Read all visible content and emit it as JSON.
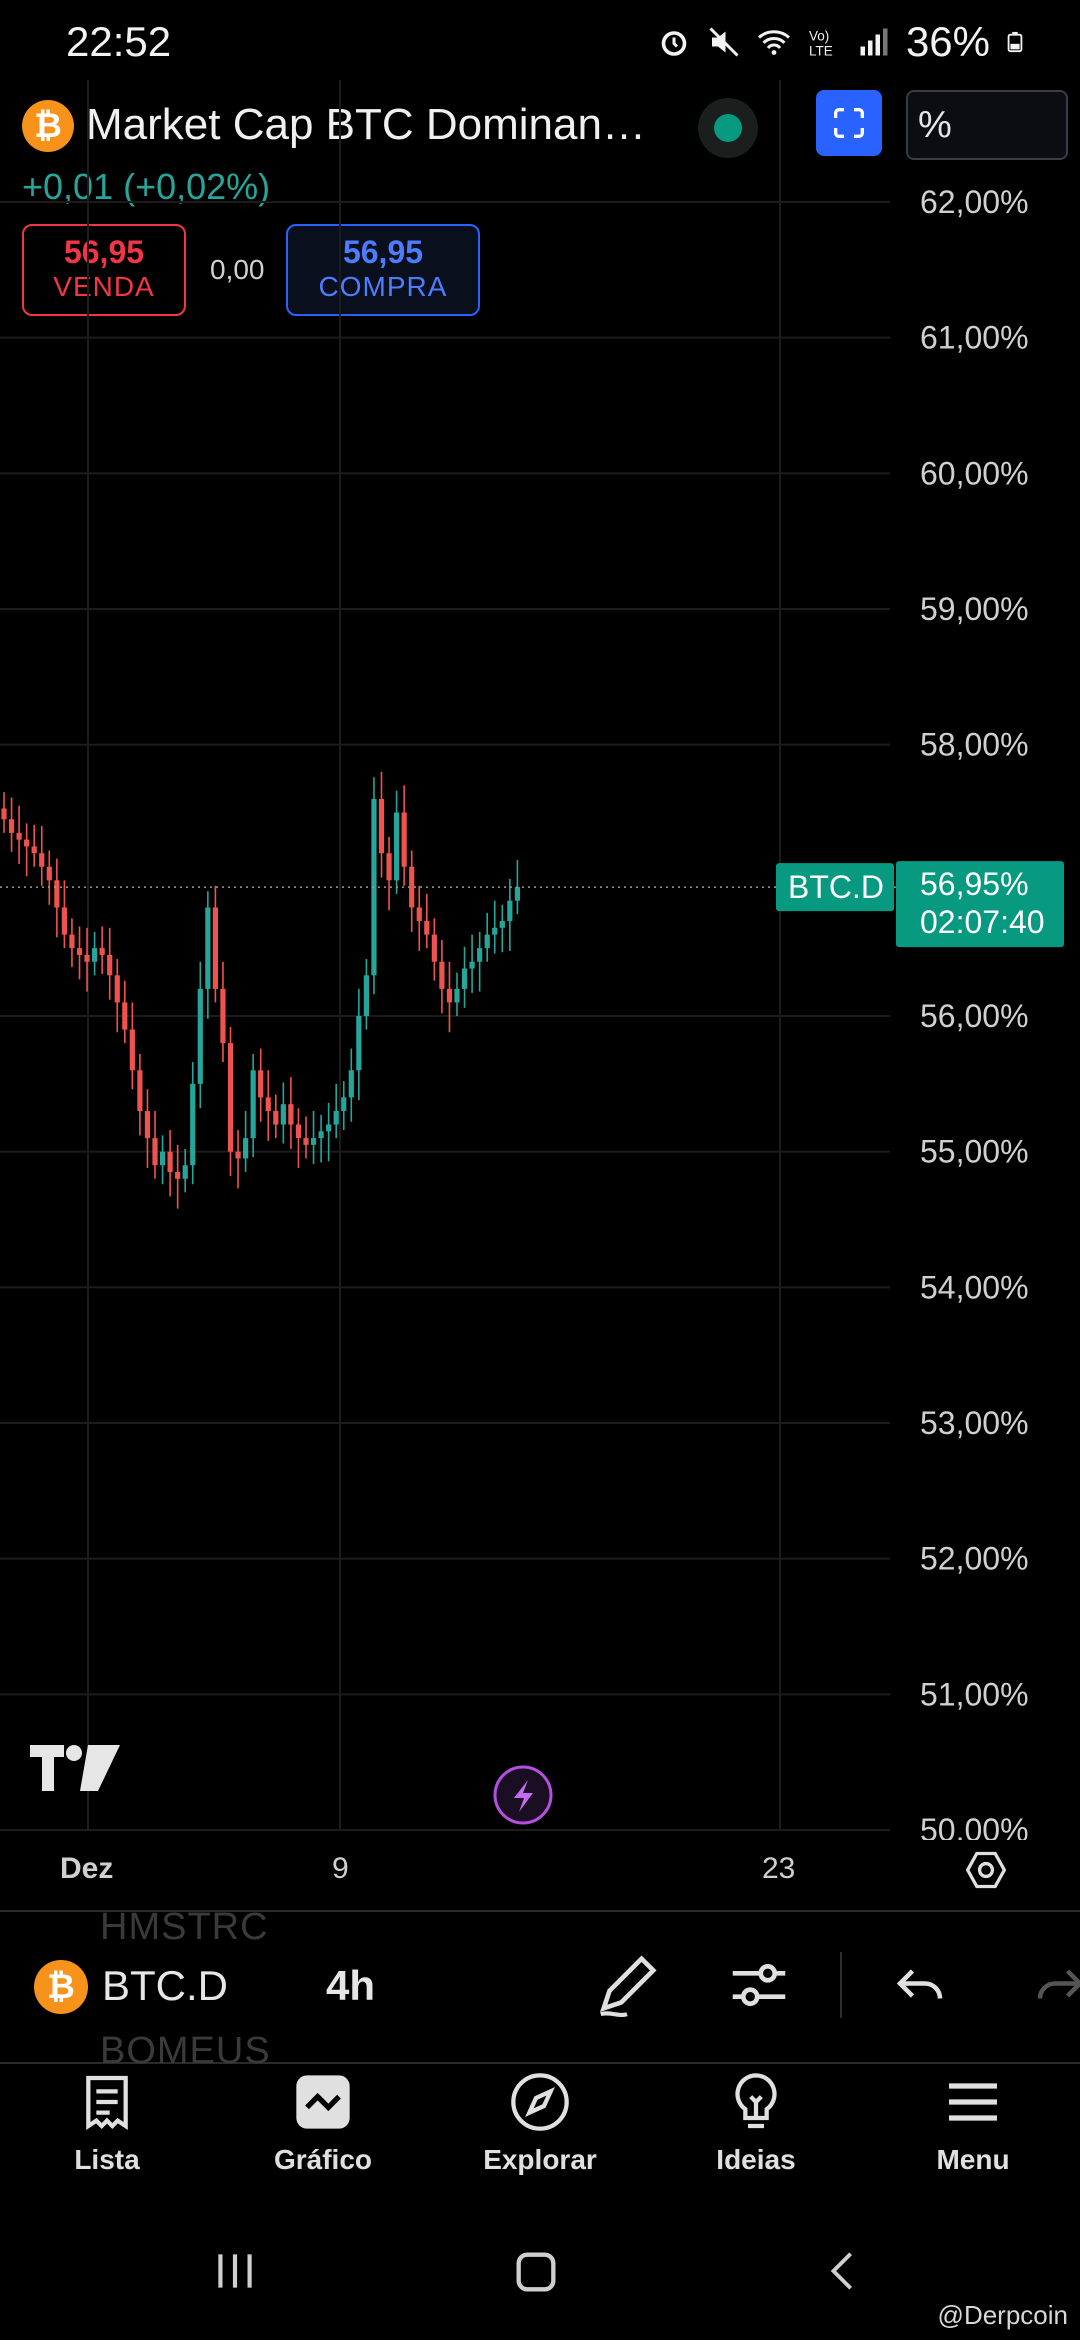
{
  "status_bar": {
    "time": "22:52",
    "battery": "36%"
  },
  "header": {
    "symbol_title": "Market Cap BTC Dominan…",
    "change": "+0,01 (+0,02%)",
    "scale_mode": "%",
    "sell_price": "56,95",
    "sell_label": "VENDA",
    "spread": "0,00",
    "buy_price": "56,95",
    "buy_label": "COMPRA",
    "logo_glyph": "₿"
  },
  "chart_data": {
    "type": "candlestick",
    "symbol": "BTC.D",
    "interval": "4h",
    "y_ticks": [
      "62,00%",
      "61,00%",
      "60,00%",
      "59,00%",
      "58,00%",
      "56,00%",
      "55,00%",
      "54,00%",
      "53,00%",
      "52,00%",
      "51,00%",
      "50,00%"
    ],
    "y_range": [
      50.0,
      62.0
    ],
    "x_ticks": [
      "Dez",
      "9",
      "23"
    ],
    "last_price_label": "56,95%",
    "countdown": "02:07:40",
    "symbol_tag": "BTC.D",
    "last_value": 56.95,
    "up_color": "#26a69a",
    "down_color": "#ef5350",
    "close_series": [
      57.45,
      57.35,
      57.3,
      57.25,
      57.2,
      57.1,
      57.0,
      56.8,
      56.6,
      56.5,
      56.45,
      56.4,
      56.5,
      56.45,
      56.3,
      56.1,
      55.9,
      55.6,
      55.3,
      55.1,
      54.9,
      55.0,
      54.85,
      54.8,
      54.9,
      55.5,
      56.2,
      56.8,
      56.2,
      55.8,
      55.0,
      54.95,
      55.1,
      55.6,
      55.4,
      55.3,
      55.2,
      55.35,
      55.2,
      55.1,
      55.05,
      55.1,
      55.15,
      55.2,
      55.3,
      55.4,
      55.6,
      56.0,
      56.3,
      57.6,
      57.2,
      57.0,
      57.5,
      57.1,
      56.8,
      56.7,
      56.6,
      56.4,
      56.2,
      56.1,
      56.2,
      56.35,
      56.4,
      56.5,
      56.6,
      56.65,
      56.7,
      56.85,
      56.95
    ]
  },
  "ticker_strip": {
    "symbol": "BTC.D",
    "interval": "4h",
    "ghost_top": "HMSTRC",
    "ghost_bottom": "BOMEUS"
  },
  "nav": {
    "items": [
      {
        "label": "Lista",
        "icon": "list-icon"
      },
      {
        "label": "Gráfico",
        "icon": "chart-icon"
      },
      {
        "label": "Explorar",
        "icon": "compass-icon"
      },
      {
        "label": "Ideias",
        "icon": "lightbulb-icon"
      },
      {
        "label": "Menu",
        "icon": "menu-icon"
      }
    ]
  },
  "watermark": "@Derpcoin"
}
